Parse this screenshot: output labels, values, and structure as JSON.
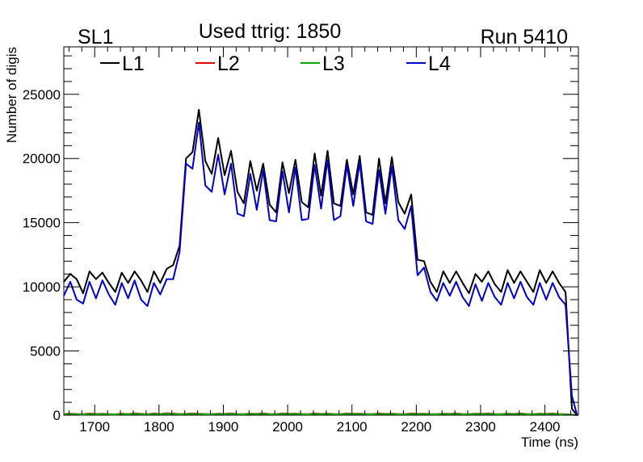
{
  "chart_data": {
    "type": "line",
    "title": "Used ttrig: 1850",
    "label_left": "SL1",
    "label_right": "Run 5410",
    "xlabel": "Time (ns)",
    "ylabel": "Number of digis",
    "xlim": [
      1652,
      2452
    ],
    "ylim": [
      0,
      28700
    ],
    "x_ticks": [
      1700,
      1800,
      1900,
      2000,
      2100,
      2200,
      2300,
      2400
    ],
    "x_tick_labels": [
      "1700",
      "1800",
      "1900",
      "2000",
      "2100",
      "2200",
      "2300",
      "2400"
    ],
    "y_ticks": [
      0,
      5000,
      10000,
      15000,
      20000,
      25000
    ],
    "y_tick_labels": [
      "0",
      "5000",
      "10000",
      "15000",
      "20000",
      "25000"
    ],
    "grid": false,
    "legend_position": "top",
    "x": [
      1652,
      1662,
      1672,
      1682,
      1692,
      1702,
      1712,
      1722,
      1732,
      1742,
      1752,
      1762,
      1772,
      1782,
      1792,
      1802,
      1812,
      1822,
      1832,
      1842,
      1852,
      1862,
      1872,
      1882,
      1892,
      1902,
      1912,
      1922,
      1932,
      1942,
      1952,
      1962,
      1972,
      1982,
      1992,
      2002,
      2012,
      2022,
      2032,
      2042,
      2052,
      2062,
      2072,
      2082,
      2092,
      2102,
      2112,
      2122,
      2132,
      2142,
      2152,
      2162,
      2172,
      2182,
      2192,
      2202,
      2212,
      2222,
      2232,
      2242,
      2252,
      2262,
      2272,
      2282,
      2292,
      2302,
      2312,
      2322,
      2332,
      2342,
      2352,
      2362,
      2372,
      2382,
      2392,
      2402,
      2412,
      2422,
      2432,
      2442,
      2450
    ],
    "series": [
      {
        "name": "L1",
        "color": "#000000",
        "values": [
          10400,
          11000,
          10600,
          9500,
          11200,
          10600,
          11100,
          10300,
          9600,
          11100,
          10300,
          11200,
          10500,
          9600,
          11200,
          10300,
          11400,
          11700,
          13200,
          20000,
          20500,
          23800,
          19800,
          18800,
          21600,
          18700,
          20600,
          17400,
          16500,
          19800,
          17500,
          19600,
          16400,
          15800,
          19700,
          17300,
          19900,
          16600,
          16200,
          20400,
          17100,
          20600,
          16500,
          16300,
          19900,
          17200,
          20200,
          15800,
          15600,
          20000,
          16500,
          20100,
          16600,
          15700,
          17200,
          12100,
          12000,
          10400,
          9600,
          11200,
          10300,
          11200,
          10300,
          9500,
          11000,
          10400,
          11200,
          10200,
          9600,
          11300,
          10300,
          11200,
          10400,
          9600,
          11300,
          10300,
          11200,
          10300,
          9600,
          500,
          0
        ]
      },
      {
        "name": "L2",
        "color": "#dd0000",
        "values": [
          80,
          120,
          90,
          70,
          130,
          90,
          110,
          80,
          60,
          120,
          90,
          140,
          100,
          70,
          130,
          90,
          150,
          120,
          90,
          100,
          130,
          110,
          90,
          80,
          120,
          100,
          130,
          90,
          80,
          120,
          100,
          140,
          90,
          80,
          130,
          110,
          120,
          90,
          80,
          130,
          100,
          120,
          90,
          80,
          130,
          110,
          120,
          90,
          80,
          130,
          100,
          120,
          90,
          80,
          130,
          100,
          120,
          90,
          80,
          120,
          100,
          130,
          90,
          80,
          120,
          100,
          130,
          90,
          80,
          120,
          100,
          130,
          90,
          80,
          120,
          100,
          130,
          90,
          80,
          40,
          0
        ]
      },
      {
        "name": "L3",
        "color": "#00aa00",
        "values": [
          60,
          90,
          70,
          50,
          100,
          70,
          90,
          60,
          50,
          100,
          70,
          110,
          80,
          60,
          100,
          70,
          120,
          90,
          70,
          80,
          100,
          90,
          70,
          60,
          100,
          80,
          110,
          70,
          60,
          100,
          80,
          110,
          70,
          60,
          100,
          90,
          100,
          70,
          60,
          100,
          80,
          100,
          70,
          60,
          100,
          90,
          100,
          70,
          60,
          100,
          80,
          100,
          70,
          60,
          100,
          80,
          100,
          70,
          60,
          100,
          80,
          110,
          70,
          60,
          100,
          80,
          110,
          70,
          60,
          100,
          80,
          110,
          70,
          60,
          100,
          80,
          110,
          70,
          60,
          30,
          0
        ]
      },
      {
        "name": "L4",
        "color": "#0000cc",
        "values": [
          9300,
          10400,
          9000,
          8700,
          10400,
          9100,
          10500,
          9400,
          8600,
          10300,
          9100,
          10500,
          9000,
          8500,
          10300,
          9400,
          10600,
          10600,
          12700,
          19600,
          19200,
          22800,
          17900,
          17400,
          20300,
          17200,
          19600,
          15700,
          15500,
          18800,
          16000,
          19100,
          15200,
          15100,
          19000,
          15800,
          19300,
          15200,
          15300,
          19500,
          16100,
          19900,
          15200,
          15500,
          19500,
          16300,
          19700,
          15100,
          14900,
          19100,
          15700,
          19400,
          15200,
          14500,
          16300,
          10900,
          11500,
          9600,
          8900,
          10300,
          9300,
          10400,
          9200,
          8500,
          10200,
          8900,
          10300,
          9200,
          8600,
          10300,
          9100,
          10400,
          9200,
          8600,
          10300,
          9000,
          10300,
          9200,
          8600,
          1500,
          0
        ]
      }
    ]
  }
}
